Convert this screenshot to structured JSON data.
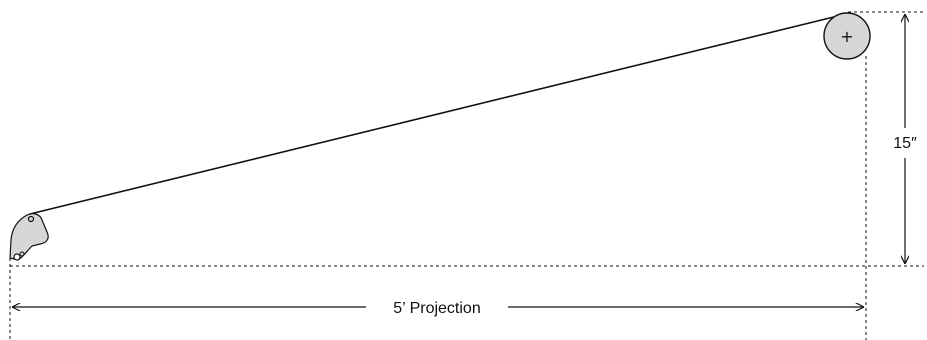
{
  "diagram": {
    "projection_label": "5’ Projection",
    "rise_label": "15″",
    "pulley_symbol": "+",
    "colors": {
      "line": "#111111",
      "shape_fill": "#d6d6d6",
      "background": "#ffffff"
    },
    "icons": {
      "pulley": "pulley-wheel-icon",
      "bracket": "mounting-bracket-icon",
      "arrow_left": "arrowhead-left-icon",
      "arrow_right": "arrowhead-right-icon",
      "arrow_up": "arrowhead-up-icon",
      "arrow_down": "arrowhead-down-icon"
    }
  }
}
